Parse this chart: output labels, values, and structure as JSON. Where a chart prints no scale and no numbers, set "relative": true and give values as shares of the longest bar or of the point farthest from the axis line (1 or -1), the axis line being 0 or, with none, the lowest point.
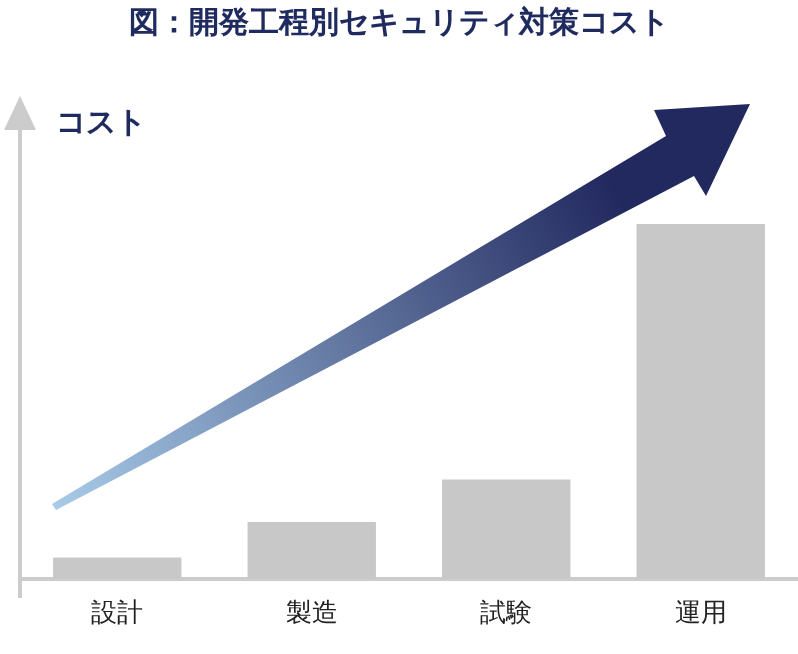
{
  "chart_data": {
    "type": "bar",
    "title": "図：開発工程別セキュリティ対策コスト",
    "ylabel": "コスト",
    "relative": true,
    "categories": [
      "設計",
      "製造",
      "試験",
      "運用"
    ],
    "values": [
      0.06,
      0.16,
      0.28,
      1
    ],
    "color": "#c8c8c8",
    "grid": false,
    "legend": false
  }
}
